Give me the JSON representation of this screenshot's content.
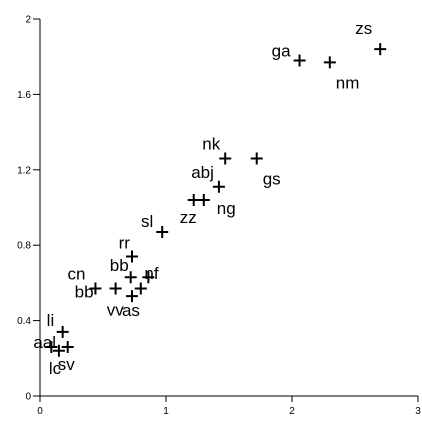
{
  "chart_data": {
    "type": "scatter",
    "title": "",
    "xlabel": "",
    "ylabel": "",
    "xlim": [
      0,
      3
    ],
    "ylim": [
      0,
      2
    ],
    "x_ticks": [
      0,
      1,
      2,
      3
    ],
    "y_ticks": [
      0,
      0.4,
      0.8,
      1.2,
      1.6,
      2
    ],
    "x_tick_labels": [
      "0",
      "1",
      "2",
      "3"
    ],
    "y_tick_labels": [
      "0",
      "0.4",
      "0.8",
      "1.2",
      "1.6",
      "2"
    ],
    "grid": false,
    "legend": "none",
    "marker": "plus",
    "points": [
      {
        "label": "zs",
        "x": 2.7,
        "y": 1.84
      },
      {
        "label": "ga",
        "x": 2.06,
        "y": 1.78
      },
      {
        "label": "nm",
        "x": 2.3,
        "y": 1.77
      },
      {
        "label": "nk",
        "x": 1.47,
        "y": 1.26
      },
      {
        "label": "gs",
        "x": 1.72,
        "y": 1.26
      },
      {
        "label": "abj",
        "x": 1.42,
        "y": 1.11
      },
      {
        "label": "ng",
        "x": 1.3,
        "y": 1.04
      },
      {
        "label": "zz",
        "x": 1.22,
        "y": 1.04
      },
      {
        "label": "sl",
        "x": 0.97,
        "y": 0.87
      },
      {
        "label": "rr",
        "x": 0.73,
        "y": 0.74
      },
      {
        "label": "bb",
        "x": 0.72,
        "y": 0.63
      },
      {
        "label": "nf",
        "x": 0.86,
        "y": 0.63
      },
      {
        "label": "cn",
        "x": 0.44,
        "y": 0.57
      },
      {
        "label": "bb",
        "x": 0.6,
        "y": 0.57
      },
      {
        "label": "vv",
        "x": 0.8,
        "y": 0.57
      },
      {
        "label": "as",
        "x": 0.73,
        "y": 0.53
      },
      {
        "label": "li",
        "x": 0.18,
        "y": 0.34
      },
      {
        "label": "aal",
        "x": 0.09,
        "y": 0.26
      },
      {
        "label": "lc",
        "x": 0.15,
        "y": 0.24
      },
      {
        "label": "sv",
        "x": 0.22,
        "y": 0.26
      }
    ]
  }
}
